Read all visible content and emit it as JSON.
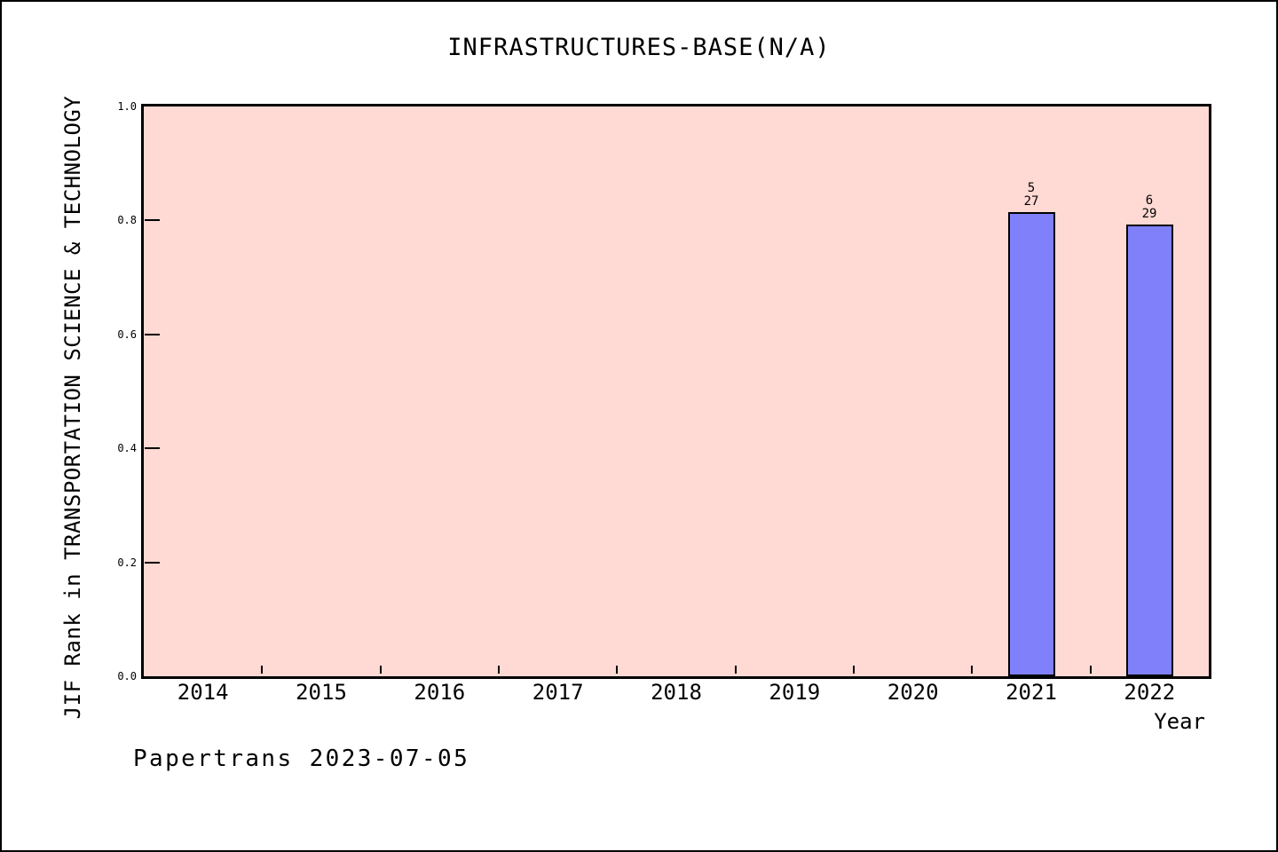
{
  "footer": "Papertrans 2023-07-05",
  "chart_data": {
    "type": "bar",
    "title": "INFRASTRUCTURES-BASE(N/A)",
    "xlabel": "Year",
    "ylabel": "JIF Rank in TRANSPORTATION SCIENCE & TECHNOLOGY",
    "categories": [
      "2014",
      "2015",
      "2016",
      "2017",
      "2018",
      "2019",
      "2020",
      "2021",
      "2022"
    ],
    "y_ticks": [
      "0.0",
      "0.2",
      "0.4",
      "0.6",
      "0.8",
      "1.0"
    ],
    "ylim": [
      0,
      1
    ],
    "grid": "off",
    "legend": "none",
    "bars": [
      {
        "category": "2021",
        "value": 0.8148,
        "label_numerator": "5",
        "label_denominator": "27"
      },
      {
        "category": "2022",
        "value": 0.7931,
        "label_numerator": "6",
        "label_denominator": "29"
      }
    ],
    "colors": {
      "plot_background": "#ffd9d4",
      "bar_fill": "#8080fa",
      "bar_edge": "#000000",
      "axis": "#000000",
      "text": "#000000"
    }
  }
}
